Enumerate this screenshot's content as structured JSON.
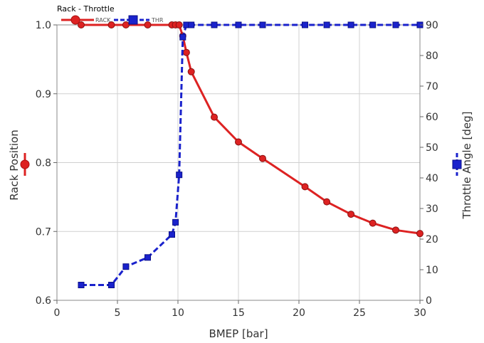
{
  "chart_data": {
    "type": "line",
    "title": "Rack - Throttle",
    "xlabel": "BMEP [bar]",
    "ylabel": "Rack Position",
    "y2label": "Throttle Angle [deg]",
    "xlim": [
      0,
      30
    ],
    "ylim": [
      0.6,
      1.0
    ],
    "y2lim": [
      0,
      90
    ],
    "xticks": [
      "0",
      "5",
      "10",
      "15",
      "20",
      "25",
      "30"
    ],
    "yticks": [
      "0.6",
      "0.7",
      "0.8",
      "0.9",
      "1.0"
    ],
    "y2ticks": [
      "0",
      "10",
      "20",
      "30",
      "40",
      "50",
      "60",
      "70",
      "80",
      "90"
    ],
    "grid": true,
    "legend_position": "top-left",
    "series": [
      {
        "name": "RACK",
        "axis": "left",
        "color": "#dd2222",
        "marker": "circle",
        "line": "solid",
        "x": [
          2.0,
          4.5,
          5.7,
          7.5,
          9.5,
          9.8,
          10.1,
          10.4,
          10.7,
          11.1,
          13.0,
          15.0,
          17.0,
          20.5,
          22.3,
          24.3,
          26.1,
          28.0,
          30.0
        ],
        "y": [
          1.0,
          1.0,
          1.0,
          1.0,
          1.0,
          1.0,
          1.0,
          0.984,
          0.96,
          0.932,
          0.866,
          0.83,
          0.806,
          0.765,
          0.743,
          0.725,
          0.712,
          0.702,
          0.697
        ]
      },
      {
        "name": "THR",
        "axis": "right",
        "color": "#1a22cc",
        "marker": "square",
        "line": "dashed",
        "x": [
          2.0,
          4.5,
          5.7,
          7.5,
          9.5,
          9.8,
          10.1,
          10.4,
          10.7,
          11.1,
          13.0,
          15.0,
          17.0,
          20.5,
          22.3,
          24.3,
          26.1,
          28.0,
          30.0
        ],
        "y": [
          5,
          5,
          11,
          14,
          21.5,
          25.5,
          41,
          86,
          90,
          90,
          90,
          90,
          90,
          90,
          90,
          90,
          90,
          90,
          90
        ]
      }
    ]
  }
}
